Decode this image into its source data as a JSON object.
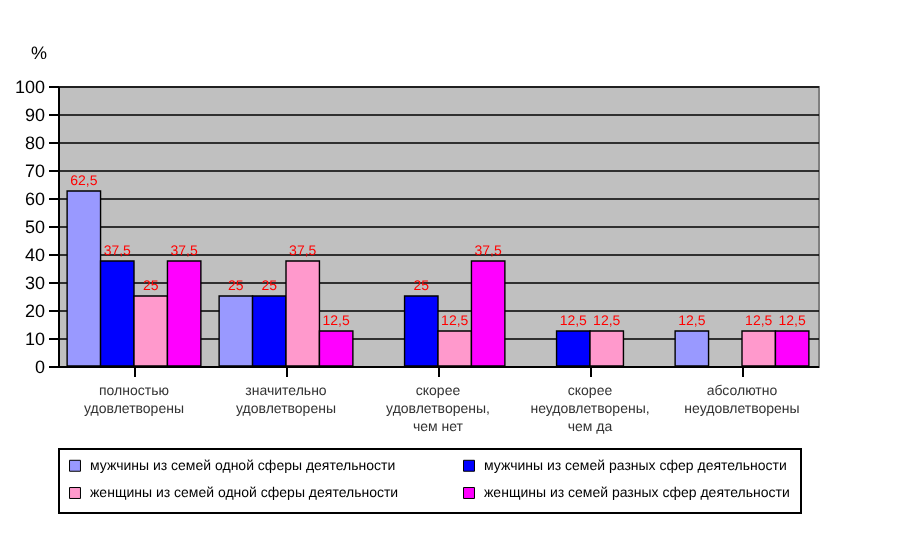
{
  "chart_data": {
    "type": "bar",
    "ylabel": "%",
    "categories": [
      "полностью удовлетворены",
      "значительно удовлетворены",
      "скорее удовлетворены, чем нет",
      "скорее неудовлетворены, чем да",
      "абсолютно неудовлетворены"
    ],
    "series": [
      {
        "name": "мужчины из семей одной сферы деятельности",
        "color": "#9999ff",
        "values": [
          62.5,
          25,
          null,
          null,
          12.5
        ],
        "value_labels": [
          "62,5",
          "25",
          null,
          null,
          "12,5"
        ]
      },
      {
        "name": "мужчины из семей разных сфер деятельности",
        "color": "#0000ff",
        "values": [
          37.5,
          25,
          25,
          12.5,
          null
        ],
        "value_labels": [
          "37,5",
          "25",
          "25",
          "12,5",
          null
        ]
      },
      {
        "name": "женщины из семей одной сферы деятельности",
        "color": "#ff99cc",
        "values": [
          25,
          37.5,
          12.5,
          12.5,
          12.5
        ],
        "value_labels": [
          "25",
          "37,5",
          "12,5",
          "12,5",
          "12,5"
        ]
      },
      {
        "name": "женщины из семей разных сфер деятельности",
        "color": "#ff00ff",
        "values": [
          37.5,
          12.5,
          37.5,
          null,
          12.5
        ],
        "value_labels": [
          "37,5",
          "12,5",
          "37,5",
          null,
          "12,5"
        ]
      }
    ],
    "ylim": [
      0,
      100
    ],
    "yticks": [
      0,
      10,
      20,
      30,
      40,
      50,
      60,
      70,
      80,
      90,
      100
    ],
    "grid": "y",
    "legend": "bottom"
  }
}
